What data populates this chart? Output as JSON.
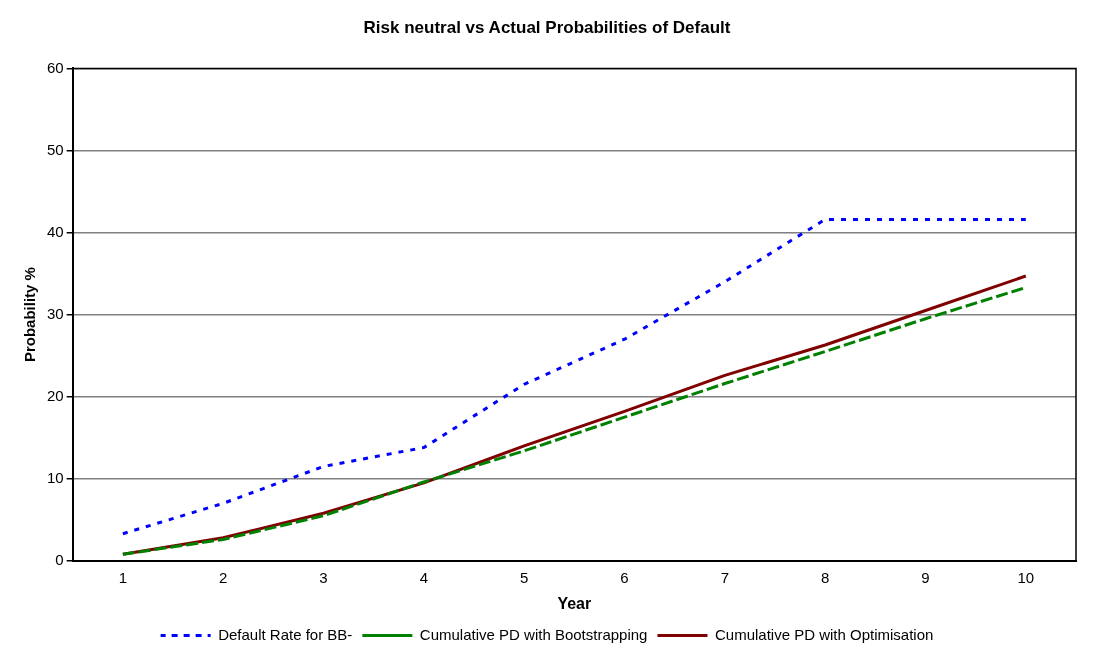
{
  "chart_data": {
    "type": "line",
    "title": "Risk neutral vs Actual Probabilities of Default",
    "xlabel": "Year",
    "ylabel": "Probability %",
    "categories": [
      "1",
      "2",
      "3",
      "4",
      "5",
      "6",
      "7",
      "8",
      "9",
      "10"
    ],
    "ylim": [
      0,
      60
    ],
    "yticks": [
      0,
      10,
      20,
      30,
      40,
      50,
      60
    ],
    "grid": "y",
    "legend": "bottom",
    "marker": "none",
    "series": [
      {
        "name": "Default Rate for BB-",
        "color": "#0000ff",
        "line_style": "dotted",
        "values": [
          3.3,
          7,
          11.5,
          13.8,
          21.5,
          27,
          34,
          41.6,
          41.6,
          41.6
        ]
      },
      {
        "name": "Cumulative PD with Bootstrapping",
        "color": "#008000",
        "line_style": "dashed",
        "values": [
          0.8,
          2.6,
          5.5,
          9.6,
          13.4,
          17.5,
          21.6,
          25.5,
          29.5,
          33.3
        ]
      },
      {
        "name": "Cumulative PD with Optimisation",
        "color": "#800000",
        "line_style": "solid",
        "values": [
          0.8,
          2.8,
          5.8,
          9.5,
          14,
          18.2,
          22.6,
          26.3,
          30.5,
          34.7
        ]
      }
    ]
  }
}
